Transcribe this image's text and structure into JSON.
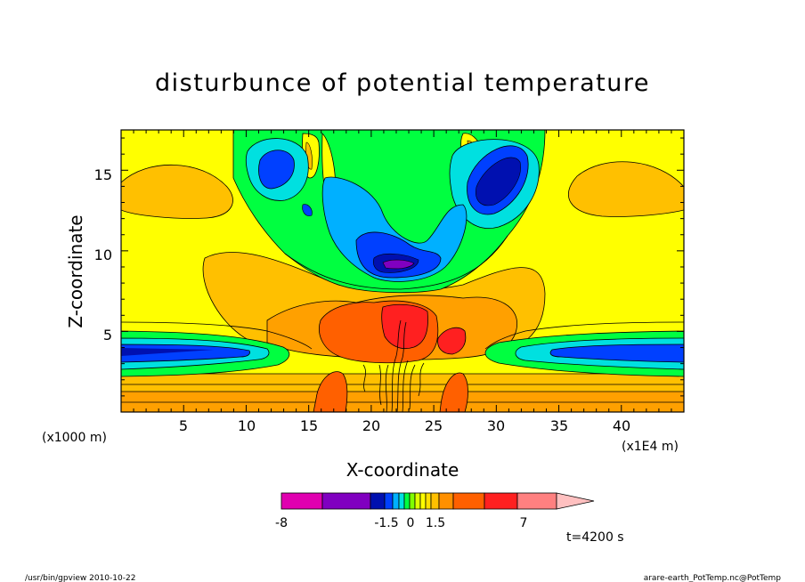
{
  "chart_data": {
    "type": "heatmap",
    "title": "disturbunce of potential temperature",
    "xlabel": "X-coordinate",
    "ylabel": "Z-coordinate",
    "x_unit_left": "(x1000 m)",
    "x_unit_right": "(x1E4 m)",
    "xlim": [
      0,
      45
    ],
    "ylim": [
      0,
      17.5
    ],
    "x_ticks": [
      "5",
      "10",
      "15",
      "20",
      "25",
      "30",
      "35",
      "40"
    ],
    "y_ticks": [
      "5",
      "10",
      "15"
    ],
    "colorbar": {
      "labels": [
        "-8",
        "-1.5",
        "0",
        "1.5",
        "7"
      ],
      "colors": [
        "#e000b0",
        "#8000c0",
        "#0010b0",
        "#0040ff",
        "#00b0ff",
        "#00e0e0",
        "#00ff40",
        "#80ff00",
        "#e0ff00",
        "#ffff00",
        "#ffe000",
        "#ffc000",
        "#ff9000",
        "#ff6000",
        "#ff2020",
        "#ff8080",
        "#ffc0c0"
      ]
    },
    "annotation": "t=4200 s"
  },
  "footer": {
    "left": "/usr/bin/gpview  2010-10-22",
    "right": "arare-earth_PotTemp.nc@PotTemp"
  }
}
